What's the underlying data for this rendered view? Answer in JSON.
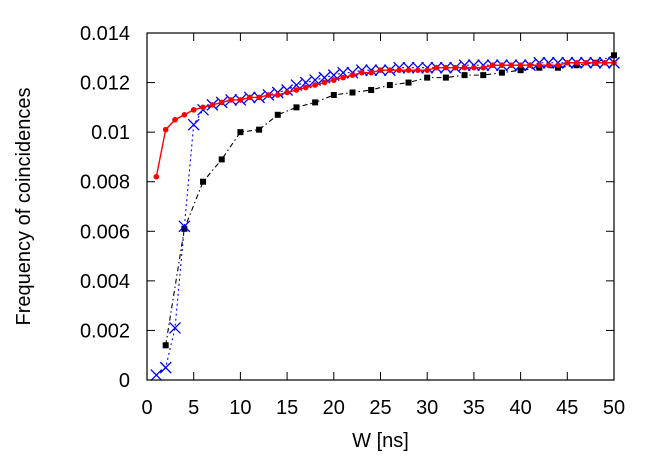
{
  "chart_data": {
    "type": "line",
    "title": "",
    "xlabel": "W [ns]",
    "ylabel": "Frequency of coincidences",
    "xlim": [
      0,
      50
    ],
    "ylim": [
      0,
      0.014
    ],
    "xticks": [
      0,
      5,
      10,
      15,
      20,
      25,
      30,
      35,
      40,
      45,
      50
    ],
    "xtick_labels": [
      "0",
      "5",
      "10",
      "15",
      "20",
      "25",
      "30",
      "35",
      "40",
      "45",
      "50"
    ],
    "yticks": [
      0,
      0.002,
      0.004,
      0.006,
      0.008,
      0.01,
      0.012,
      0.014
    ],
    "ytick_labels": [
      "0",
      "0.002",
      "0.004",
      "0.006",
      "0.008",
      "0.01",
      "0.012",
      "0.014"
    ],
    "grid": false,
    "legend": "none",
    "series": [
      {
        "color": "#ff0000",
        "marker": "circle",
        "line": "solid",
        "x": [
          1,
          2,
          3,
          4,
          5,
          6,
          7,
          8,
          9,
          10,
          11,
          12,
          13,
          14,
          15,
          16,
          17,
          18,
          19,
          20,
          21,
          22,
          23,
          24,
          25,
          26,
          27,
          28,
          29,
          30,
          31,
          32,
          33,
          34,
          35,
          36,
          37,
          38,
          39,
          40,
          41,
          42,
          43,
          44,
          45,
          46,
          47,
          48,
          49,
          50
        ],
        "y": [
          0.0082,
          0.0101,
          0.0105,
          0.0107,
          0.0109,
          0.011,
          0.0111,
          0.0112,
          0.0113,
          0.0113,
          0.0114,
          0.0114,
          0.0115,
          0.0115,
          0.0116,
          0.0117,
          0.0118,
          0.0119,
          0.012,
          0.0121,
          0.0122,
          0.0123,
          0.0124,
          0.0124,
          0.0125,
          0.0125,
          0.0125,
          0.0125,
          0.0125,
          0.0125,
          0.0126,
          0.0126,
          0.0126,
          0.0126,
          0.0126,
          0.0126,
          0.0127,
          0.0127,
          0.0127,
          0.0127,
          0.0127,
          0.0127,
          0.0127,
          0.0127,
          0.0128,
          0.0128,
          0.0128,
          0.0128,
          0.0128,
          0.0128
        ]
      },
      {
        "color": "#0000ff",
        "marker": "x",
        "line": "dotted",
        "x": [
          1,
          2,
          3,
          4,
          5,
          6,
          7,
          8,
          9,
          10,
          11,
          12,
          13,
          14,
          15,
          16,
          17,
          18,
          19,
          20,
          21,
          22,
          23,
          24,
          25,
          26,
          27,
          28,
          29,
          30,
          31,
          32,
          33,
          34,
          35,
          36,
          37,
          38,
          39,
          40,
          41,
          42,
          43,
          44,
          45,
          46,
          47,
          48,
          49,
          50
        ],
        "y": [
          0.0002,
          0.0005,
          0.0021,
          0.0062,
          0.0103,
          0.0109,
          0.0111,
          0.0112,
          0.0113,
          0.0113,
          0.0114,
          0.0114,
          0.0115,
          0.0116,
          0.0117,
          0.0119,
          0.012,
          0.0121,
          0.0122,
          0.0123,
          0.0124,
          0.0124,
          0.0125,
          0.0125,
          0.0125,
          0.0125,
          0.0126,
          0.0126,
          0.0126,
          0.0126,
          0.0126,
          0.0126,
          0.0126,
          0.0127,
          0.0127,
          0.0127,
          0.0127,
          0.0127,
          0.0127,
          0.0127,
          0.0127,
          0.0128,
          0.0128,
          0.0128,
          0.0128,
          0.0128,
          0.0128,
          0.0128,
          0.0128,
          0.0128
        ]
      },
      {
        "color": "#000000",
        "marker": "square",
        "line": "dash-dot",
        "x": [
          2,
          4,
          6,
          8,
          10,
          12,
          14,
          16,
          18,
          20,
          22,
          24,
          26,
          28,
          30,
          32,
          34,
          36,
          38,
          40,
          42,
          44,
          46,
          48,
          50
        ],
        "y": [
          0.0014,
          0.0061,
          0.008,
          0.0089,
          0.01,
          0.0101,
          0.0107,
          0.011,
          0.0112,
          0.0115,
          0.0116,
          0.0117,
          0.0119,
          0.012,
          0.0122,
          0.0122,
          0.0123,
          0.0123,
          0.0124,
          0.0125,
          0.0126,
          0.0126,
          0.0127,
          0.0128,
          0.0131
        ]
      }
    ]
  }
}
